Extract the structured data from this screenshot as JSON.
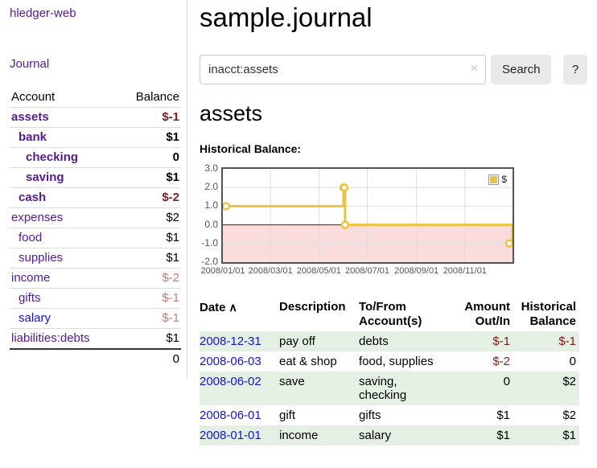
{
  "colors": {
    "link_purple": "#551a8b",
    "link_blue": "#1414cc",
    "negative": "#7f1c1c",
    "negative_dim": "#c07a7a",
    "row_green": "#e3f0e3",
    "chart_line": "#edc240",
    "chart_negative_fill": "#fbdcdc",
    "chart_zero_line": "#8b0000",
    "chart_grid": "#dedede",
    "chart_border": "#545454",
    "button_bg": "#e9e9e9",
    "divider": "#d8d8d8",
    "clear_icon_color": "#d8cde9"
  },
  "icons": {
    "sort_asc": "∧",
    "clear": "×"
  },
  "sidebar": {
    "brand": "hledger-web",
    "journal_label": "Journal",
    "accounts": {
      "headers": {
        "account": "Account",
        "balance": "Balance"
      },
      "rows": [
        {
          "name": "assets",
          "depth": 1,
          "balance": "$-1",
          "matched": true,
          "neg": true
        },
        {
          "name": "bank",
          "depth": 2,
          "balance": "$1",
          "matched": true,
          "neg": false
        },
        {
          "name": "checking",
          "depth": 3,
          "balance": "0",
          "matched": true,
          "neg": false
        },
        {
          "name": "saving",
          "depth": 3,
          "balance": "$1",
          "matched": true,
          "neg": false
        },
        {
          "name": "cash",
          "depth": 2,
          "balance": "$-2",
          "matched": true,
          "neg": true
        },
        {
          "name": "expenses",
          "depth": 1,
          "balance": "$2",
          "matched": false,
          "neg": false
        },
        {
          "name": "food",
          "depth": 2,
          "balance": "$1",
          "matched": false,
          "neg": false
        },
        {
          "name": "supplies",
          "depth": 2,
          "balance": "$1",
          "matched": false,
          "neg": false
        },
        {
          "name": "income",
          "depth": 1,
          "balance": "$-2",
          "matched": false,
          "neg": true
        },
        {
          "name": "gifts",
          "depth": 2,
          "balance": "$-1",
          "matched": false,
          "neg": true
        },
        {
          "name": "salary",
          "depth": 2,
          "balance": "$-1",
          "matched": false,
          "neg": true,
          "link": "blue"
        },
        {
          "name": "liabilities:debts",
          "depth": 1,
          "balance": "$1",
          "matched": false,
          "neg": false
        }
      ],
      "total": "0"
    }
  },
  "header": {
    "title": "sample.journal"
  },
  "search": {
    "value": "inacct:assets",
    "button_label": "Search",
    "help_label": "?"
  },
  "account_page": {
    "heading": "assets",
    "section_label": "Historical Balance:"
  },
  "chart_data": {
    "type": "line",
    "title": "Historical Balance",
    "step": true,
    "x": [
      "2008-01-01",
      "2008-06-01",
      "2008-06-02",
      "2008-06-03",
      "2008-12-31"
    ],
    "series": [
      {
        "name": "$",
        "values": [
          1,
          2,
          2,
          0,
          -1
        ]
      }
    ],
    "xlim": [
      "2008-01-01",
      "2008-12-31"
    ],
    "ylim": [
      -2,
      3
    ],
    "x_ticks": [
      "2008/01/01",
      "2008/03/01",
      "2008/05/01",
      "2008/07/01",
      "2008/09/01",
      "2008/11/01"
    ],
    "y_ticks": [
      "3.0",
      "2.0",
      "1.0",
      "0.0",
      "-1.0",
      "-2.0"
    ],
    "grid": true,
    "legend_position": "top-right",
    "legend": [
      "$"
    ]
  },
  "register": {
    "headers": [
      {
        "label": "Date",
        "sort": "asc"
      },
      {
        "label": "Description"
      },
      {
        "label": "To/From\nAccount(s)"
      },
      {
        "label": "Amount\nOut/In",
        "align": "right"
      },
      {
        "label": "Historical\nBalance",
        "align": "right"
      }
    ],
    "rows": [
      {
        "date": "2008-12-31",
        "description": "pay off",
        "accounts": "debts",
        "amount": "$-1",
        "balance": "$-1",
        "amount_neg": true,
        "balance_neg": true
      },
      {
        "date": "2008-06-03",
        "description": "eat & shop",
        "accounts": "food, supplies",
        "amount": "$-2",
        "balance": "0",
        "amount_neg": true,
        "balance_neg": false
      },
      {
        "date": "2008-06-02",
        "description": "save",
        "accounts": "saving,\nchecking",
        "amount": "0",
        "balance": "$2",
        "amount_neg": false,
        "balance_neg": false
      },
      {
        "date": "2008-06-01",
        "description": "gift",
        "accounts": "gifts",
        "amount": "$1",
        "balance": "$2",
        "amount_neg": false,
        "balance_neg": false
      },
      {
        "date": "2008-01-01",
        "description": "income",
        "accounts": "salary",
        "amount": "$1",
        "balance": "$1",
        "amount_neg": false,
        "balance_neg": false
      }
    ]
  }
}
